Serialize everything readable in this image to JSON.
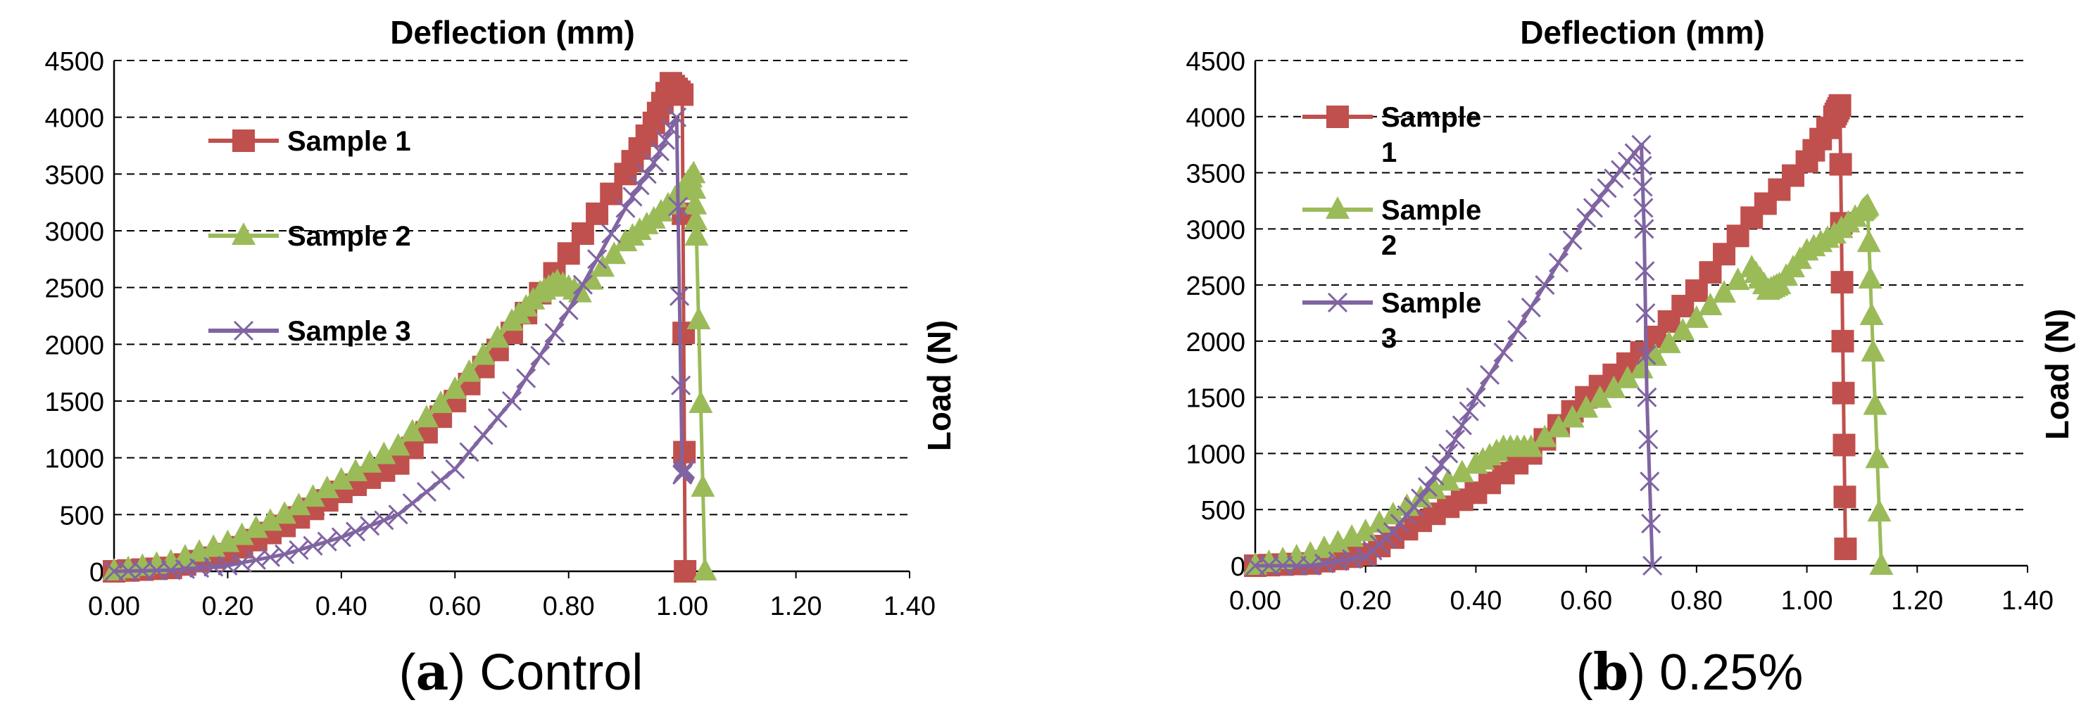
{
  "colors": {
    "sample1": "#c0504d",
    "sample2": "#9bbb59",
    "sample3": "#8064a2",
    "grid": "#000000"
  },
  "captions": [
    {
      "letter": "a",
      "text": "Control"
    },
    {
      "letter": "b",
      "text": "0.25%"
    }
  ],
  "chart_data": [
    {
      "type": "line",
      "title": "Deflection (mm)",
      "xlabel": "",
      "ylabel": "Load (N)",
      "xlim": [
        0,
        1.4
      ],
      "ylim": [
        0,
        4500
      ],
      "xticks": [
        "0.00",
        "0.20",
        "0.40",
        "0.60",
        "0.80",
        "1.00",
        "1.20",
        "1.40"
      ],
      "yticks": [
        "0",
        "500",
        "1000",
        "1500",
        "2000",
        "2500",
        "3000",
        "3500",
        "4000",
        "4500"
      ],
      "grid": "horizontal dashed",
      "legend": "top-left",
      "series": [
        {
          "name": "Sample 1",
          "marker": "square",
          "color": "#c0504d",
          "x": [
            0.0,
            0.1,
            0.2,
            0.3,
            0.4,
            0.5,
            0.6,
            0.7,
            0.8,
            0.9,
            0.95,
            0.98,
            1.0,
            1.005
          ],
          "y": [
            0,
            30,
            150,
            400,
            700,
            950,
            1500,
            2100,
            2800,
            3500,
            3950,
            4300,
            4200,
            0
          ]
        },
        {
          "name": "Sample 2",
          "marker": "triangle",
          "color": "#9bbb59",
          "x": [
            0.0,
            0.1,
            0.2,
            0.3,
            0.4,
            0.5,
            0.6,
            0.7,
            0.75,
            0.78,
            0.82,
            0.9,
            0.95,
            1.0,
            1.02,
            1.025,
            1.04
          ],
          "y": [
            0,
            80,
            250,
            500,
            800,
            1100,
            1600,
            2200,
            2450,
            2550,
            2450,
            2900,
            3100,
            3350,
            3500,
            2950,
            0
          ]
        },
        {
          "name": "Sample 3",
          "marker": "x",
          "color": "#8064a2",
          "x": [
            0.0,
            0.1,
            0.2,
            0.3,
            0.4,
            0.5,
            0.6,
            0.7,
            0.8,
            0.9,
            0.95,
            0.99,
            1.0,
            1.005
          ],
          "y": [
            0,
            10,
            50,
            150,
            300,
            500,
            900,
            1500,
            2300,
            3200,
            3600,
            4000,
            850,
            900
          ]
        }
      ]
    },
    {
      "type": "line",
      "title": "Deflection (mm)",
      "xlabel": "",
      "ylabel": "Load (N)",
      "xlim": [
        0,
        1.4
      ],
      "ylim": [
        0,
        4500
      ],
      "xticks": [
        "0.00",
        "0.20",
        "0.40",
        "0.60",
        "0.80",
        "1.00",
        "1.20",
        "1.40"
      ],
      "yticks": [
        "0",
        "500",
        "1000",
        "1500",
        "2000",
        "2500",
        "3000",
        "3500",
        "4000",
        "4500"
      ],
      "grid": "horizontal dashed",
      "legend": "top-left",
      "series": [
        {
          "name": "Sample 1",
          "marker": "square",
          "color": "#c0504d",
          "x": [
            0.0,
            0.1,
            0.2,
            0.3,
            0.4,
            0.5,
            0.6,
            0.7,
            0.8,
            0.9,
            1.0,
            1.05,
            1.06,
            1.065,
            1.07
          ],
          "y": [
            0,
            20,
            100,
            400,
            650,
            1000,
            1500,
            1900,
            2450,
            3100,
            3600,
            4000,
            4100,
            2000,
            150
          ]
        },
        {
          "name": "Sample 2",
          "marker": "triangle",
          "color": "#9bbb59",
          "x": [
            0.0,
            0.1,
            0.2,
            0.3,
            0.4,
            0.45,
            0.5,
            0.6,
            0.7,
            0.8,
            0.9,
            0.93,
            0.95,
            1.0,
            1.05,
            1.1,
            1.11,
            1.12,
            1.135
          ],
          "y": [
            0,
            100,
            300,
            600,
            900,
            1050,
            1050,
            1400,
            1750,
            2200,
            2650,
            2450,
            2500,
            2800,
            2950,
            3150,
            3200,
            1900,
            0
          ]
        },
        {
          "name": "Sample 3",
          "marker": "x",
          "color": "#8064a2",
          "x": [
            0.0,
            0.1,
            0.2,
            0.25,
            0.3,
            0.35,
            0.4,
            0.5,
            0.6,
            0.65,
            0.7,
            0.705,
            0.71,
            0.72
          ],
          "y": [
            0,
            0,
            80,
            300,
            600,
            1000,
            1500,
            2300,
            3100,
            3450,
            3750,
            3000,
            1500,
            0
          ]
        }
      ]
    }
  ]
}
